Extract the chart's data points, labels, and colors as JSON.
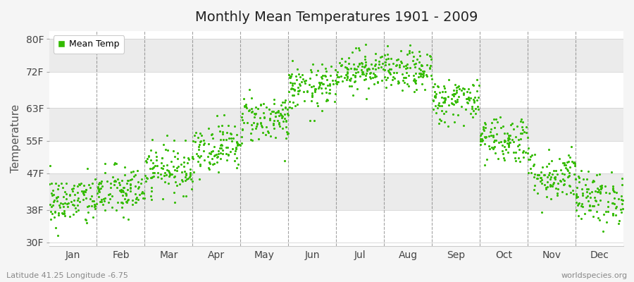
{
  "title": "Monthly Mean Temperatures 1901 - 2009",
  "ylabel": "Temperature",
  "subtitle_left": "Latitude 41.25 Longitude -6.75",
  "subtitle_right": "worldspecies.org",
  "legend_label": "Mean Temp",
  "yticks": [
    30,
    38,
    47,
    55,
    63,
    72,
    80
  ],
  "ytick_labels": [
    "30F",
    "38F",
    "47F",
    "55F",
    "63F",
    "72F",
    "80F"
  ],
  "ylim": [
    29,
    82
  ],
  "months": [
    "Jan",
    "Feb",
    "Mar",
    "Apr",
    "May",
    "Jun",
    "Jul",
    "Aug",
    "Sep",
    "Oct",
    "Nov",
    "Dec"
  ],
  "dot_color": "#33bb00",
  "bg_color": "#f5f5f5",
  "plot_bg_color": "#ffffff",
  "stripe_color": "#ebebeb",
  "n_years": 109,
  "seed": 42,
  "mean_temps_F": [
    40.1,
    42.5,
    48.0,
    53.5,
    60.5,
    68.0,
    72.5,
    72.0,
    65.0,
    55.5,
    46.5,
    41.0
  ],
  "std_temps_F": [
    3.2,
    3.2,
    3.0,
    3.0,
    3.0,
    2.8,
    2.5,
    2.5,
    2.8,
    3.0,
    3.2,
    3.2
  ]
}
